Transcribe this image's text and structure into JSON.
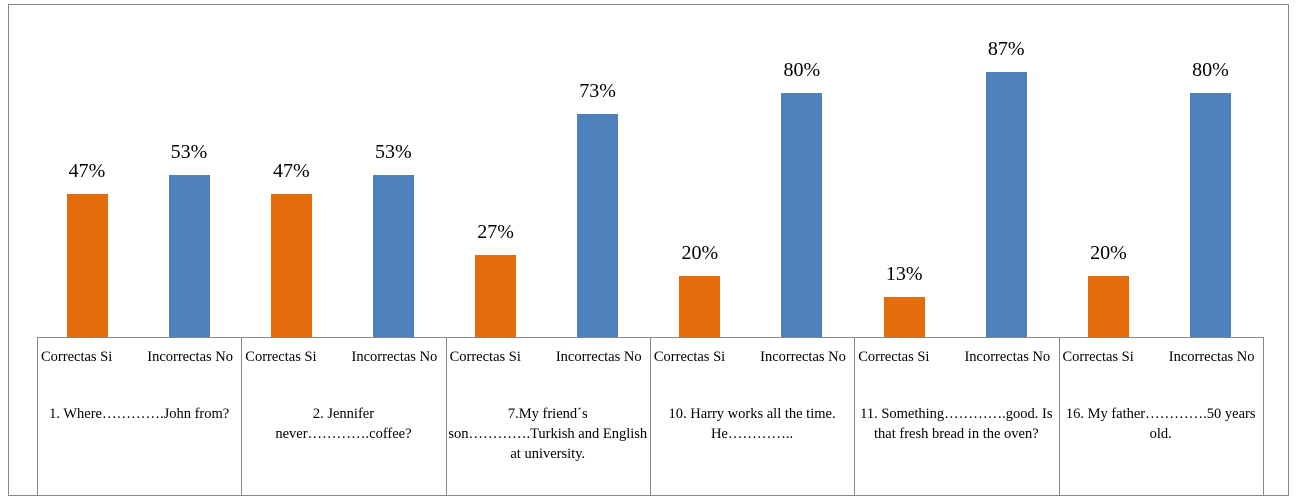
{
  "chart_data": {
    "type": "bar",
    "categories": [
      "1. Where………….John from?",
      "2. Jennifer never………….coffee?",
      "7.My friend´s son………….Turkish and English at university.",
      "10. Harry works all the time. He………….. ",
      "11. Something………….good. Is that fresh bread in the oven?",
      "16. My father………….50 years old."
    ],
    "series": [
      {
        "name": "Correctas Si",
        "color": "#e46c0a",
        "values": [
          47,
          47,
          27,
          20,
          13,
          20
        ],
        "value_labels": [
          "47%",
          "47%",
          "27%",
          "20%",
          "13%",
          "20%"
        ]
      },
      {
        "name": "Incorrectas No",
        "color": "#4f81bd",
        "values": [
          53,
          53,
          73,
          80,
          87,
          80
        ],
        "value_labels": [
          "53%",
          "53%",
          "73%",
          "80%",
          "87%",
          "80%"
        ]
      }
    ]
  }
}
